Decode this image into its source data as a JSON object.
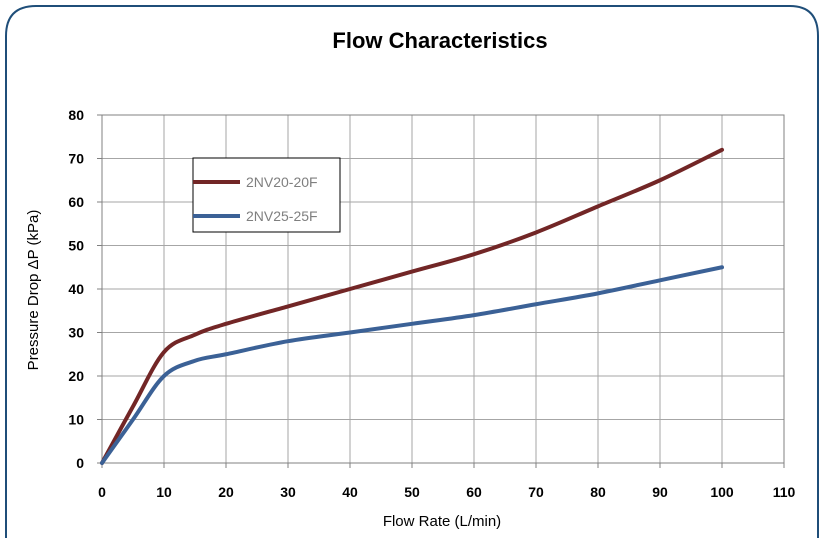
{
  "colors": {
    "frame_border": "#1f4e79",
    "grid": "#a6a6a6",
    "plot_border": "#808080"
  },
  "chart_data": {
    "type": "line",
    "title": "Flow Characteristics",
    "xlabel": "Flow Rate (L/min)",
    "ylabel": "Pressure Drop  ΔP  (kPa)",
    "xlim": [
      0,
      110
    ],
    "ylim": [
      0,
      80
    ],
    "xticks": [
      0,
      10,
      20,
      30,
      40,
      50,
      60,
      70,
      80,
      90,
      100,
      110
    ],
    "yticks": [
      0,
      10,
      20,
      30,
      40,
      50,
      60,
      70,
      80
    ],
    "grid": true,
    "legend_position": "upper-left-inside",
    "series": [
      {
        "name": "2NV20-20F",
        "color": "#722626",
        "x": [
          0,
          5,
          10,
          15,
          20,
          30,
          40,
          50,
          60,
          70,
          80,
          90,
          100
        ],
        "y": [
          0,
          13,
          25.5,
          29.5,
          32,
          36,
          40,
          44,
          48,
          53,
          59,
          65,
          72
        ]
      },
      {
        "name": "2NV25-25F",
        "color": "#3b6196",
        "x": [
          0,
          5,
          10,
          15,
          20,
          30,
          40,
          50,
          60,
          70,
          80,
          90,
          100
        ],
        "y": [
          0,
          10,
          20,
          23.5,
          25,
          28,
          30,
          32,
          34,
          36.5,
          39,
          42,
          45
        ]
      }
    ]
  }
}
